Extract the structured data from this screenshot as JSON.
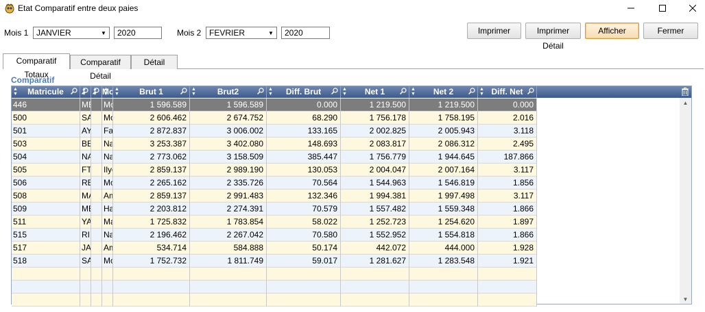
{
  "window": {
    "title": "Etat Comparatif entre deux paies"
  },
  "controls": {
    "mois1_label": "Mois 1",
    "mois1_value": "JANVIER",
    "annee1_value": "2020",
    "mois2_label": "Mois 2",
    "mois2_value": "FEVRIER",
    "annee2_value": "2020"
  },
  "buttons": {
    "imprimer": "Imprimer",
    "imprimer_detail": "Imprimer Détail",
    "afficher": "Afficher",
    "fermer": "Fermer"
  },
  "tabs": [
    "Comparatif Totaux",
    "Comparatif Détail",
    "Détail"
  ],
  "section_title": "Comparatif",
  "columns": {
    "matricule": "Matricule",
    "c2": "",
    "c3": "",
    "c4": "Mo",
    "brut1": "Brut 1",
    "brut2": "Brut2",
    "diff_brut": "Diff. Brut",
    "net1": "Net 1",
    "net2": "Net 2",
    "diff_net": "Diff. Net"
  },
  "rows": [
    {
      "mat": "446",
      "c2": "ME",
      "c3": "",
      "c4": "Mo",
      "brut1": "1 596.589",
      "brut2": "1 596.589",
      "diff_brut": "0.000",
      "net1": "1 219.500",
      "net2": "1 219.500",
      "diff_net": "0.000"
    },
    {
      "mat": "500",
      "c2": "SA",
      "c3": "",
      "c4": "Mo",
      "brut1": "2 606.462",
      "brut2": "2 674.752",
      "diff_brut": "68.290",
      "net1": "1 756.178",
      "net2": "1 758.195",
      "diff_net": "2.016"
    },
    {
      "mat": "501",
      "c2": "AY",
      "c3": "",
      "c4": "Fa",
      "brut1": "2 872.837",
      "brut2": "3 006.002",
      "diff_brut": "133.165",
      "net1": "2 002.825",
      "net2": "2 005.943",
      "diff_net": "3.118"
    },
    {
      "mat": "503",
      "c2": "BE",
      "c3": "",
      "c4": "Na",
      "brut1": "3 253.387",
      "brut2": "3 402.080",
      "diff_brut": "148.693",
      "net1": "2 083.817",
      "net2": "2 086.312",
      "diff_net": "2.495"
    },
    {
      "mat": "504",
      "c2": "NA",
      "c3": "",
      "c4": "Na",
      "brut1": "2 773.062",
      "brut2": "3 158.509",
      "diff_brut": "385.447",
      "net1": "1 756.779",
      "net2": "1 944.645",
      "diff_net": "187.866"
    },
    {
      "mat": "505",
      "c2": "FT",
      "c3": "",
      "c4": "Ilye",
      "brut1": "2 859.137",
      "brut2": "2 989.190",
      "diff_brut": "130.053",
      "net1": "2 004.047",
      "net2": "2 007.164",
      "diff_net": "3.117"
    },
    {
      "mat": "506",
      "c2": "RE",
      "c3": "",
      "c4": "Mo",
      "brut1": "2 265.162",
      "brut2": "2 335.726",
      "diff_brut": "70.564",
      "net1": "1 544.963",
      "net2": "1 546.819",
      "diff_net": "1.856"
    },
    {
      "mat": "508",
      "c2": "MA",
      "c3": "",
      "c4": "Am",
      "brut1": "2 859.137",
      "brut2": "2 991.483",
      "diff_brut": "132.346",
      "net1": "1 994.381",
      "net2": "1 997.498",
      "diff_net": "3.117"
    },
    {
      "mat": "509",
      "c2": "ME",
      "c3": "",
      "c4": "Ha",
      "brut1": "2 203.812",
      "brut2": "2 274.391",
      "diff_brut": "70.579",
      "net1": "1 557.482",
      "net2": "1 559.348",
      "diff_net": "1.866"
    },
    {
      "mat": "511",
      "c2": "YA",
      "c3": "",
      "c4": "Ma",
      "brut1": "1 725.832",
      "brut2": "1 783.854",
      "diff_brut": "58.022",
      "net1": "1 252.723",
      "net2": "1 254.620",
      "diff_net": "1.897"
    },
    {
      "mat": "515",
      "c2": "RI",
      "c3": "",
      "c4": "Na",
      "brut1": "2 196.462",
      "brut2": "2 267.042",
      "diff_brut": "70.580",
      "net1": "1 552.952",
      "net2": "1 554.818",
      "diff_net": "1.866"
    },
    {
      "mat": "517",
      "c2": "JA",
      "c3": "",
      "c4": "Am",
      "brut1": "534.714",
      "brut2": "584.888",
      "diff_brut": "50.174",
      "net1": "442.072",
      "net2": "444.000",
      "diff_net": "1.928"
    },
    {
      "mat": "518",
      "c2": "SA",
      "c3": "",
      "c4": "Mo",
      "brut1": "1 752.732",
      "brut2": "1 811.749",
      "diff_brut": "59.017",
      "net1": "1 281.627",
      "net2": "1 283.548",
      "diff_net": "1.921"
    }
  ],
  "empty_rows": 3,
  "icons": {
    "app": "app-logo-icon",
    "minimize": "minimize-icon",
    "maximize": "maximize-icon",
    "close": "close-icon",
    "dropdown": "chevron-down-icon",
    "search": "search-icon",
    "sort": "sort-icon",
    "delete": "trash-icon"
  },
  "colors": {
    "header_bg": "#3c5a8c",
    "section_title": "#4a7cc2",
    "row_even": "#ecf3fb",
    "row_odd": "#fdf8de",
    "row_selected": "#7d7d7d",
    "primary_button_border": "#d99a3c"
  }
}
